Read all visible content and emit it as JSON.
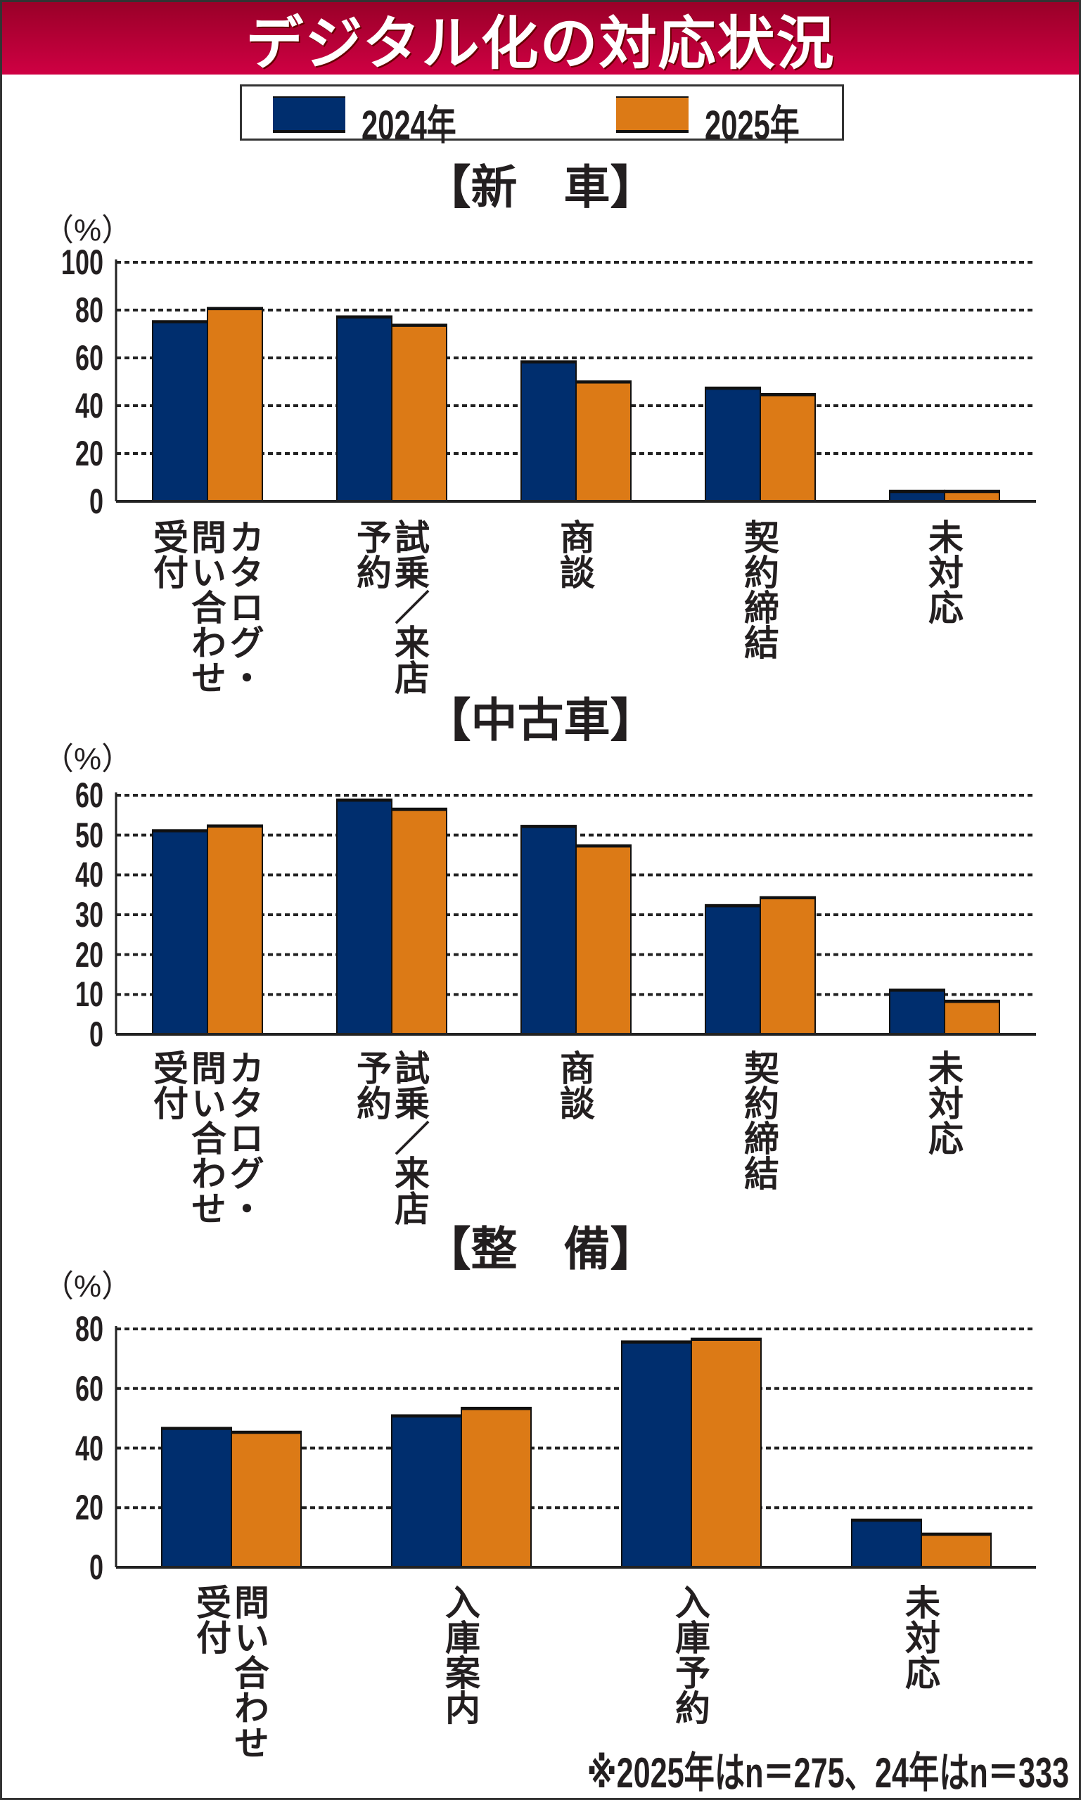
{
  "title": "デジタル化の対応状況",
  "legend": [
    {
      "label": "2024年",
      "color": "#002e6e"
    },
    {
      "label": "2025年",
      "color": "#dc7a16"
    }
  ],
  "footnote": "※2025年はn＝275、24年はn＝333",
  "chart_data": [
    {
      "type": "bar",
      "title": "【新　車】",
      "ylabel": "（%）",
      "ylim": [
        0,
        100
      ],
      "yticks": [
        "0",
        "20",
        "40",
        "60",
        "80",
        "100"
      ],
      "grid": true,
      "categories": [
        [
          "カタログ・",
          "問い合わせ",
          "受付"
        ],
        [
          "試乗／来店",
          "予約"
        ],
        [
          "商談"
        ],
        [
          "契約締結"
        ],
        [
          "未対応"
        ]
      ],
      "series": [
        {
          "name": "2024年",
          "values": [
            75.5,
            77.5,
            58.7,
            47.7,
            4.5
          ]
        },
        {
          "name": "2025年",
          "values": [
            81,
            74,
            50.3,
            45,
            4.5
          ]
        }
      ]
    },
    {
      "type": "bar",
      "title": "【中古車】",
      "ylabel": "（%）",
      "ylim": [
        0,
        60
      ],
      "yticks": [
        "0",
        "10",
        "20",
        "30",
        "40",
        "50",
        "60"
      ],
      "grid": true,
      "categories": [
        [
          "カタログ・",
          "問い合わせ",
          "受付"
        ],
        [
          "試乗／来店",
          "予約"
        ],
        [
          "商談"
        ],
        [
          "契約締結"
        ],
        [
          "未対応"
        ]
      ],
      "series": [
        {
          "name": "2024年",
          "values": [
            51.3,
            59,
            52.4,
            32.5,
            11.3
          ]
        },
        {
          "name": "2025年",
          "values": [
            52.5,
            56.7,
            47.5,
            34.5,
            8.5
          ]
        }
      ]
    },
    {
      "type": "bar",
      "title": "【整　備】",
      "ylabel": "（%）",
      "ylim": [
        0,
        80
      ],
      "yticks": [
        "0",
        "20",
        "40",
        "60",
        "80"
      ],
      "grid": true,
      "categories": [
        [
          "問い合わせ",
          "受付"
        ],
        [
          "入庫案内"
        ],
        [
          "入庫予約"
        ],
        [
          "未対応"
        ]
      ],
      "series": [
        {
          "name": "2024年",
          "values": [
            46.9,
            51.1,
            75.9,
            16.1
          ]
        },
        {
          "name": "2025年",
          "values": [
            45.6,
            53.6,
            76.8,
            11.4
          ]
        }
      ]
    }
  ]
}
